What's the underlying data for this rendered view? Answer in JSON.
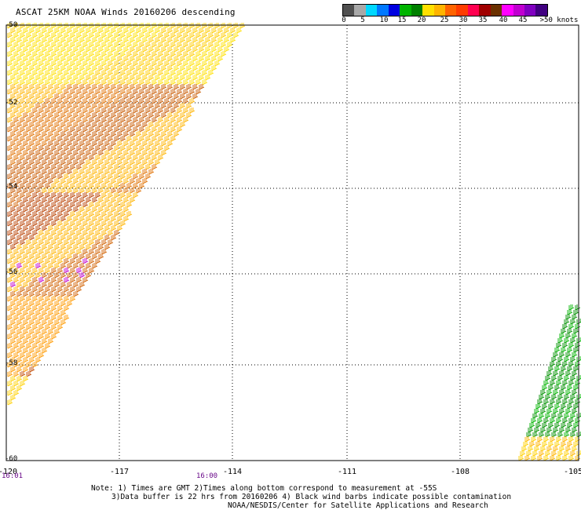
{
  "title": "ASCAT 25KM NOAA Winds 20160206 descending",
  "legend": {
    "colors": [
      "#505050",
      "#a8a8a8",
      "#00d8ff",
      "#0078ff",
      "#0000e0",
      "#00b400",
      "#008000",
      "#ffe000",
      "#ffb400",
      "#ff6400",
      "#ff3c00",
      "#ff0050",
      "#a00000",
      "#6a3000",
      "#ff00ff",
      "#c000d0",
      "#8000c0",
      "#400080"
    ],
    "labels": [
      "0",
      "5",
      "10",
      "15",
      "20",
      "25",
      "30",
      "35",
      "40",
      "45",
      ">50 knots"
    ]
  },
  "axes": {
    "x_ticks": [
      "-120",
      "-117",
      "-114",
      "-111",
      "-108",
      "-105"
    ],
    "y_ticks": [
      "-50",
      "-52",
      "-54",
      "-56",
      "-58",
      "-60"
    ]
  },
  "times": [
    "16:01",
    "16:00"
  ],
  "notes": [
    "Note: 1) Times are GMT 2)Times along bottom correspond to measurement at -55S",
    "3)Data buffer is 22 hrs from 20160206 4) Black wind barbs indicate possible contamination",
    "NOAA/NESDIS/Center for Satellite Applications and Research"
  ]
}
